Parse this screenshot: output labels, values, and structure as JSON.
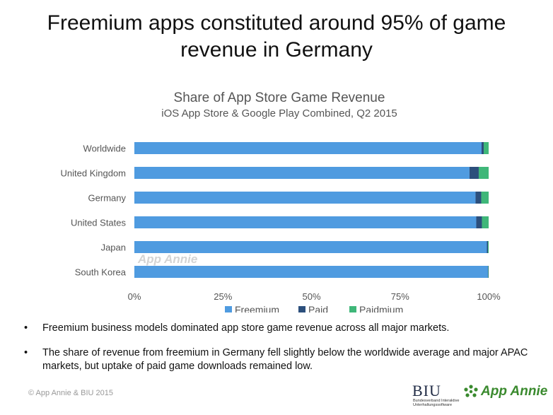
{
  "slide": {
    "title_line1": "Freemium apps constituted around 95% of game",
    "title_line2": "revenue in Germany",
    "bullets": [
      "Freemium business models dominated app store game revenue across all major markets.",
      "The share of revenue from freemium in Germany fell slightly below the worldwide average and major APAC markets, but uptake of paid game downloads remained low."
    ],
    "footer": "© App Annie & BIU 2015",
    "logo_biu": "BIU",
    "logo_biu_sub": "Bundesverband Interaktive Unterhaltungssoftware",
    "logo_appannie": "App Annie",
    "watermark": "App Annie"
  },
  "chart_data": {
    "type": "bar",
    "orientation": "horizontal",
    "stacked": true,
    "title": "Share of App Store Game Revenue",
    "subtitle": "iOS App Store & Google Play Combined,  Q2 2015",
    "categories": [
      "Worldwide",
      "United Kingdom",
      "Germany",
      "United States",
      "Japan",
      "South Korea"
    ],
    "series": [
      {
        "name": "Freemium",
        "color": "#4f9be0",
        "values": [
          98.0,
          94.6,
          96.3,
          96.5,
          99.5,
          99.8
        ]
      },
      {
        "name": "Paid",
        "color": "#2c4f7c",
        "values": [
          0.6,
          2.6,
          1.6,
          1.6,
          0.3,
          0.1
        ]
      },
      {
        "name": "Paidmium",
        "color": "#3fb779",
        "values": [
          1.4,
          2.8,
          2.1,
          1.9,
          0.2,
          0.1
        ]
      }
    ],
    "xlim": [
      0,
      100
    ],
    "xticks": [
      "0%",
      "25%",
      "50%",
      "75%",
      "100%"
    ],
    "grid": false,
    "legend": "bottom"
  }
}
